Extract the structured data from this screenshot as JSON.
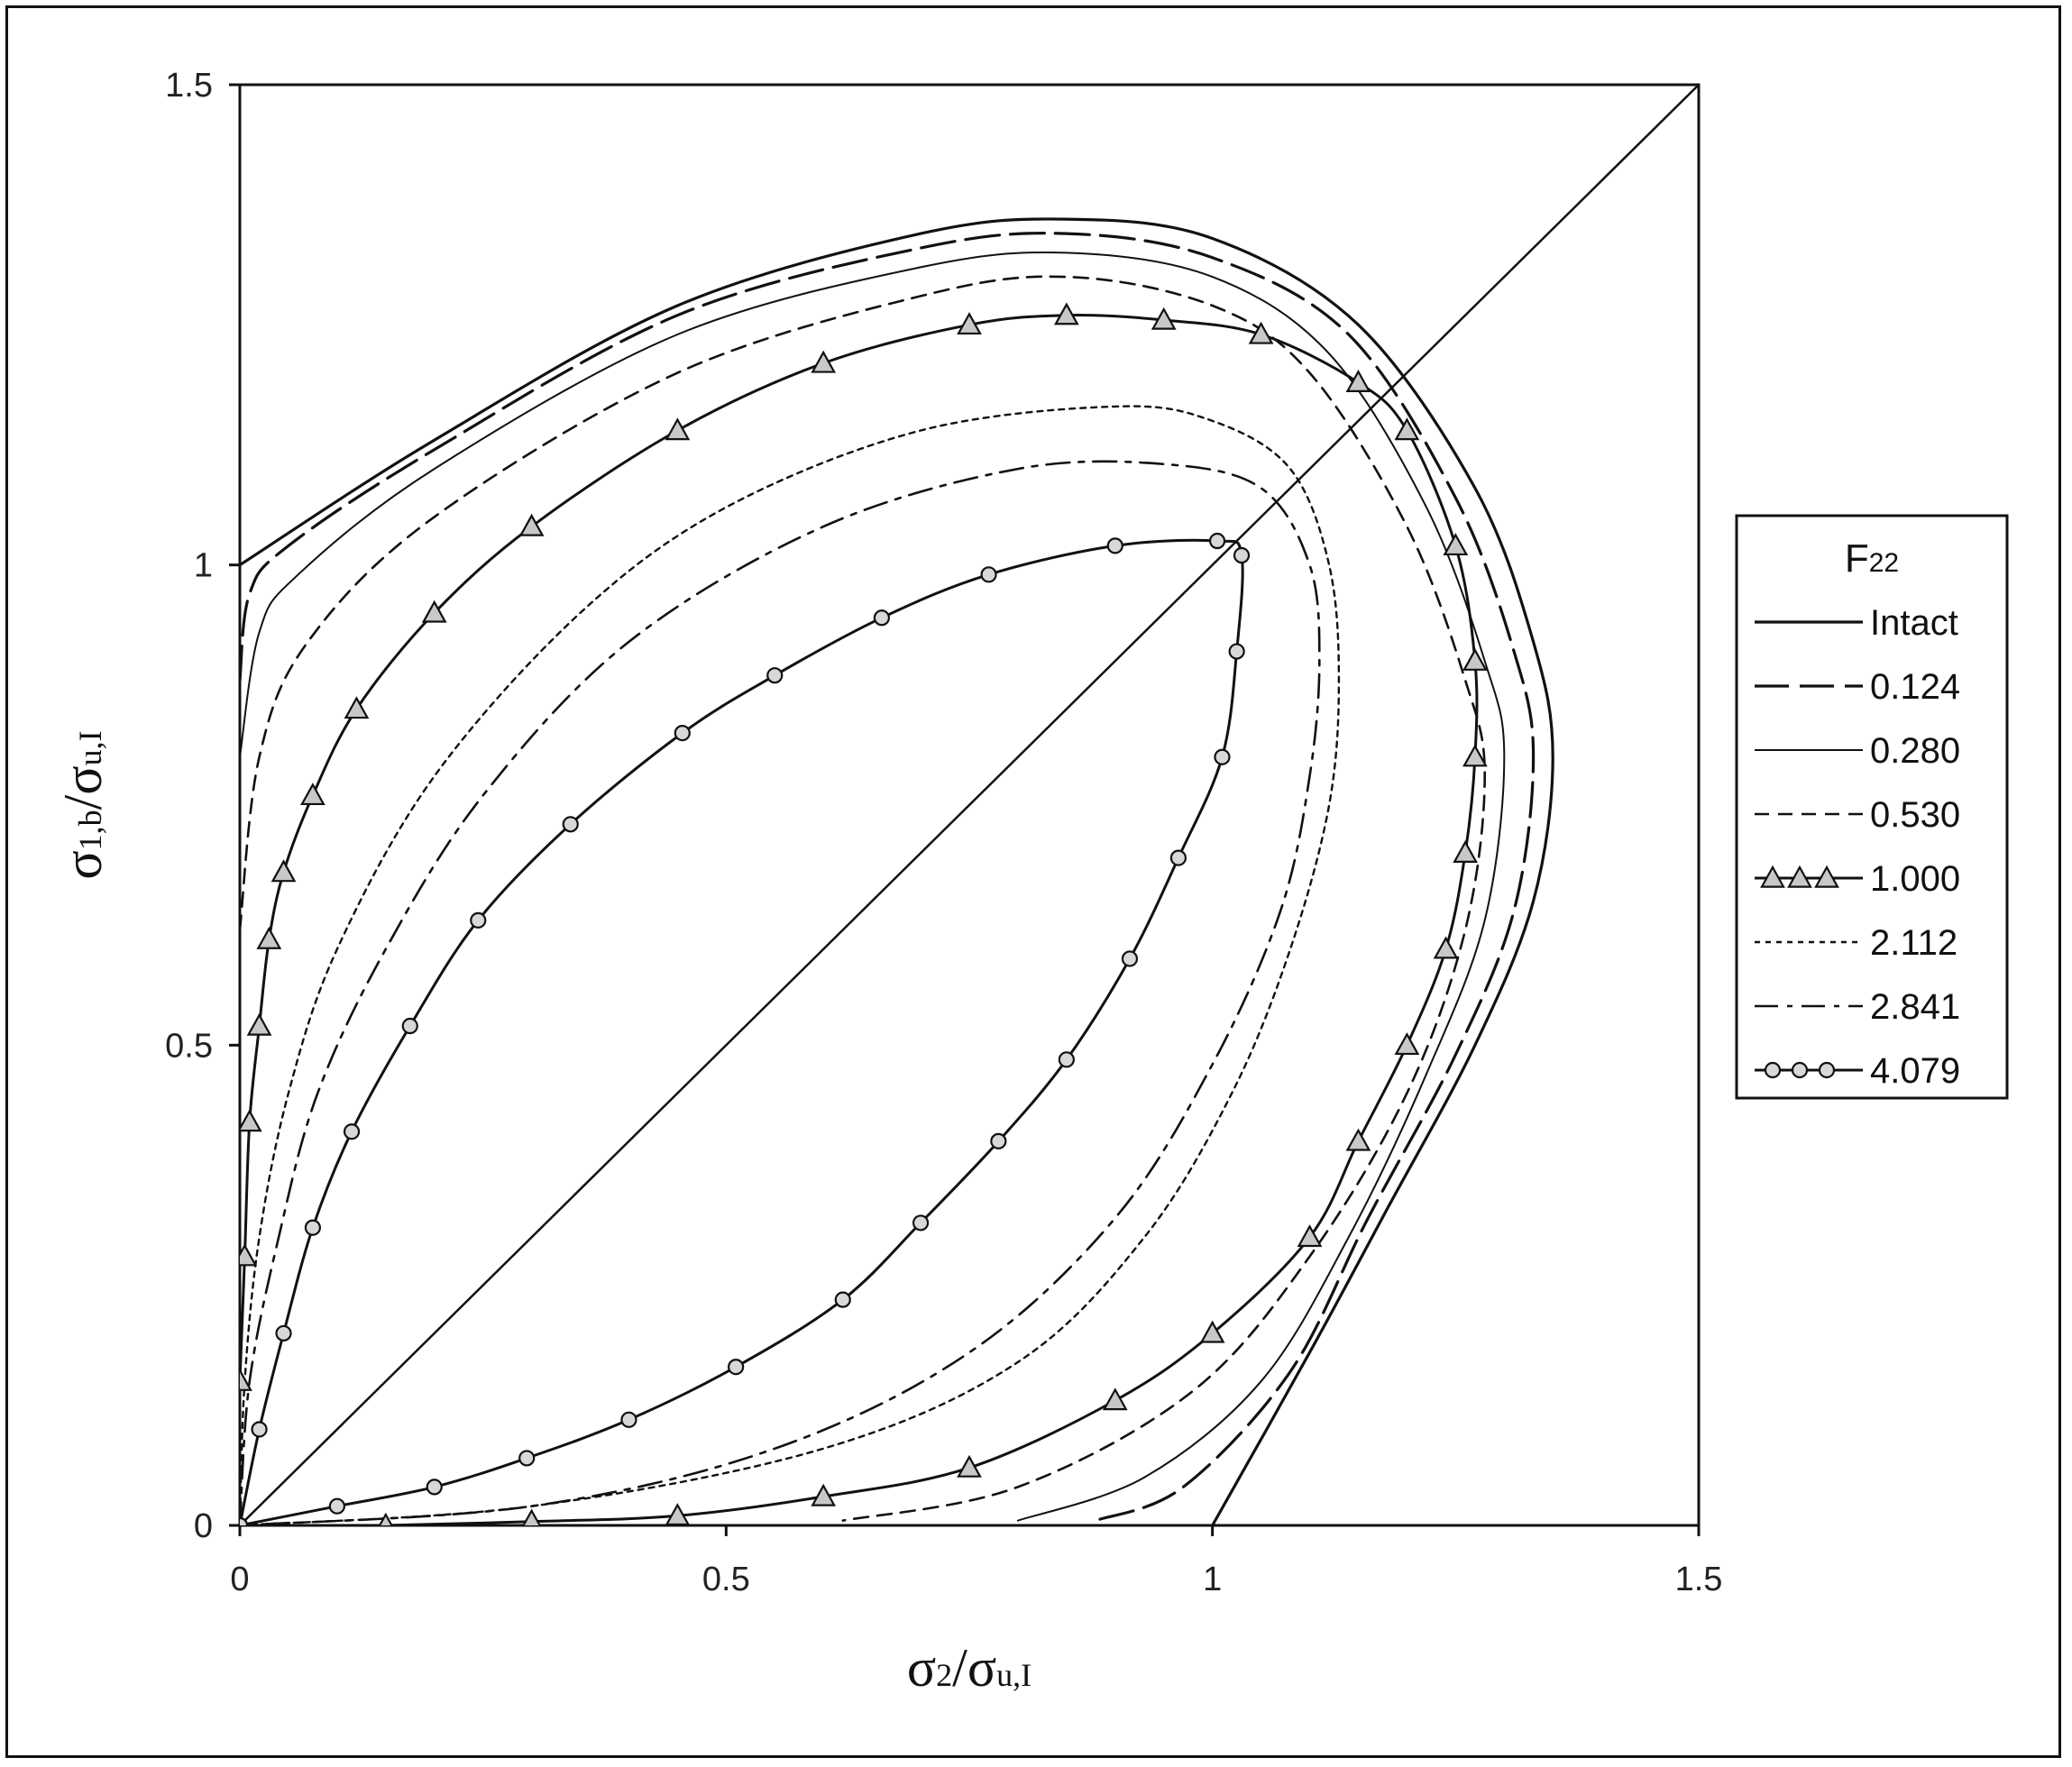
{
  "chart_data": {
    "type": "line",
    "xlabel": "σ2/σu,I",
    "ylabel": "σ1,b/σu,I",
    "xlim": [
      0,
      1.5
    ],
    "ylim": [
      0,
      1.5
    ],
    "x_ticks": [
      "0",
      "0.5",
      "1",
      "1.5"
    ],
    "y_ticks": [
      "0",
      "0.5",
      "1",
      "1.5"
    ],
    "grid": false,
    "legend_title": "F22",
    "legend_position": "right",
    "reference_line": {
      "from": [
        0,
        0
      ],
      "to": [
        1.5,
        1.5
      ]
    },
    "series": [
      {
        "name": "Intact",
        "style": "solid",
        "points": [
          [
            0,
            1.0
          ],
          [
            0.2,
            1.13
          ],
          [
            0.45,
            1.27
          ],
          [
            0.7,
            1.345
          ],
          [
            0.85,
            1.36
          ],
          [
            1.0,
            1.34
          ],
          [
            1.15,
            1.25
          ],
          [
            1.27,
            1.08
          ],
          [
            1.33,
            0.92
          ],
          [
            1.35,
            0.8
          ],
          [
            1.33,
            0.65
          ],
          [
            1.27,
            0.5
          ],
          [
            1.18,
            0.33
          ],
          [
            1.1,
            0.18
          ],
          [
            1.0,
            0.0
          ]
        ]
      },
      {
        "name": "0.124",
        "style": "longdash",
        "points": [
          [
            0,
            0.88
          ],
          [
            0.01,
            0.97
          ],
          [
            0.05,
            1.02
          ],
          [
            0.2,
            1.12
          ],
          [
            0.45,
            1.26
          ],
          [
            0.7,
            1.33
          ],
          [
            0.85,
            1.345
          ],
          [
            1.0,
            1.32
          ],
          [
            1.14,
            1.24
          ],
          [
            1.25,
            1.07
          ],
          [
            1.31,
            0.91
          ],
          [
            1.33,
            0.8
          ],
          [
            1.31,
            0.64
          ],
          [
            1.25,
            0.49
          ],
          [
            1.16,
            0.32
          ],
          [
            1.08,
            0.16
          ],
          [
            0.97,
            0.04
          ],
          [
            0.88,
            0.005
          ]
        ]
      },
      {
        "name": "0.280",
        "style": "solid-thin",
        "points": [
          [
            0,
            0.8
          ],
          [
            0.02,
            0.93
          ],
          [
            0.06,
            0.99
          ],
          [
            0.2,
            1.1
          ],
          [
            0.45,
            1.24
          ],
          [
            0.7,
            1.31
          ],
          [
            0.85,
            1.325
          ],
          [
            1.0,
            1.3
          ],
          [
            1.12,
            1.22
          ],
          [
            1.22,
            1.06
          ],
          [
            1.28,
            0.9
          ],
          [
            1.3,
            0.8
          ],
          [
            1.28,
            0.63
          ],
          [
            1.22,
            0.47
          ],
          [
            1.14,
            0.3
          ],
          [
            1.05,
            0.15
          ],
          [
            0.93,
            0.05
          ],
          [
            0.8,
            0.005
          ]
        ]
      },
      {
        "name": "0.530",
        "style": "dash",
        "points": [
          [
            0,
            0.62
          ],
          [
            0.02,
            0.8
          ],
          [
            0.07,
            0.92
          ],
          [
            0.2,
            1.05
          ],
          [
            0.45,
            1.2
          ],
          [
            0.7,
            1.28
          ],
          [
            0.85,
            1.3
          ],
          [
            1.0,
            1.27
          ],
          [
            1.1,
            1.2
          ],
          [
            1.2,
            1.04
          ],
          [
            1.26,
            0.88
          ],
          [
            1.28,
            0.78
          ],
          [
            1.26,
            0.62
          ],
          [
            1.2,
            0.45
          ],
          [
            1.1,
            0.28
          ],
          [
            0.98,
            0.14
          ],
          [
            0.8,
            0.04
          ],
          [
            0.62,
            0.005
          ]
        ]
      },
      {
        "name": "1.000",
        "style": "triangle",
        "points": [
          [
            0,
            0.15
          ],
          [
            0.005,
            0.28
          ],
          [
            0.01,
            0.42
          ],
          [
            0.02,
            0.52
          ],
          [
            0.03,
            0.61
          ],
          [
            0.045,
            0.68
          ],
          [
            0.075,
            0.76
          ],
          [
            0.12,
            0.85
          ],
          [
            0.2,
            0.95
          ],
          [
            0.3,
            1.04
          ],
          [
            0.45,
            1.14
          ],
          [
            0.6,
            1.21
          ],
          [
            0.75,
            1.25
          ],
          [
            0.85,
            1.26
          ],
          [
            0.95,
            1.255
          ],
          [
            1.05,
            1.24
          ],
          [
            1.15,
            1.19
          ],
          [
            1.2,
            1.14
          ],
          [
            1.25,
            1.02
          ],
          [
            1.27,
            0.9
          ],
          [
            1.27,
            0.8
          ],
          [
            1.26,
            0.7
          ],
          [
            1.24,
            0.6
          ],
          [
            1.2,
            0.5
          ],
          [
            1.15,
            0.4
          ],
          [
            1.1,
            0.3
          ],
          [
            1.0,
            0.2
          ],
          [
            0.9,
            0.13
          ],
          [
            0.75,
            0.06
          ],
          [
            0.6,
            0.03
          ],
          [
            0.45,
            0.01
          ],
          [
            0.3,
            0.004
          ],
          [
            0.15,
            0.0
          ]
        ]
      },
      {
        "name": "2.112",
        "style": "dot",
        "points": [
          [
            0,
            0.0
          ],
          [
            0.005,
            0.15
          ],
          [
            0.02,
            0.3
          ],
          [
            0.05,
            0.45
          ],
          [
            0.1,
            0.6
          ],
          [
            0.2,
            0.78
          ],
          [
            0.35,
            0.95
          ],
          [
            0.5,
            1.06
          ],
          [
            0.7,
            1.14
          ],
          [
            0.9,
            1.165
          ],
          [
            1.0,
            1.15
          ],
          [
            1.08,
            1.1
          ],
          [
            1.12,
            1.0
          ],
          [
            1.13,
            0.88
          ],
          [
            1.12,
            0.75
          ],
          [
            1.08,
            0.6
          ],
          [
            1.02,
            0.45
          ],
          [
            0.93,
            0.3
          ],
          [
            0.8,
            0.17
          ],
          [
            0.6,
            0.08
          ],
          [
            0.3,
            0.02
          ],
          [
            0.0,
            0.0
          ]
        ]
      },
      {
        "name": "2.841",
        "style": "dashdot",
        "points": [
          [
            0,
            0.0
          ],
          [
            0.01,
            0.15
          ],
          [
            0.04,
            0.3
          ],
          [
            0.08,
            0.45
          ],
          [
            0.15,
            0.6
          ],
          [
            0.25,
            0.76
          ],
          [
            0.4,
            0.92
          ],
          [
            0.6,
            1.04
          ],
          [
            0.8,
            1.1
          ],
          [
            0.95,
            1.105
          ],
          [
            1.05,
            1.08
          ],
          [
            1.1,
            1.0
          ],
          [
            1.11,
            0.9
          ],
          [
            1.1,
            0.78
          ],
          [
            1.07,
            0.64
          ],
          [
            1.0,
            0.48
          ],
          [
            0.9,
            0.32
          ],
          [
            0.75,
            0.18
          ],
          [
            0.55,
            0.08
          ],
          [
            0.3,
            0.02
          ],
          [
            0.0,
            0.0
          ]
        ]
      },
      {
        "name": "4.079",
        "style": "circle",
        "points": [
          [
            0,
            0.0
          ],
          [
            0.02,
            0.1
          ],
          [
            0.045,
            0.2
          ],
          [
            0.075,
            0.31
          ],
          [
            0.115,
            0.41
          ],
          [
            0.175,
            0.52
          ],
          [
            0.245,
            0.63
          ],
          [
            0.34,
            0.73
          ],
          [
            0.455,
            0.825
          ],
          [
            0.55,
            0.885
          ],
          [
            0.66,
            0.945
          ],
          [
            0.77,
            0.99
          ],
          [
            0.9,
            1.02
          ],
          [
            1.005,
            1.025
          ],
          [
            1.03,
            1.01
          ],
          [
            1.025,
            0.91
          ],
          [
            1.01,
            0.8
          ],
          [
            0.965,
            0.695
          ],
          [
            0.915,
            0.59
          ],
          [
            0.85,
            0.485
          ],
          [
            0.78,
            0.4
          ],
          [
            0.7,
            0.315
          ],
          [
            0.62,
            0.235
          ],
          [
            0.51,
            0.165
          ],
          [
            0.4,
            0.11
          ],
          [
            0.295,
            0.07
          ],
          [
            0.2,
            0.04
          ],
          [
            0.1,
            0.02
          ],
          [
            0.0,
            0.0
          ]
        ]
      }
    ]
  }
}
